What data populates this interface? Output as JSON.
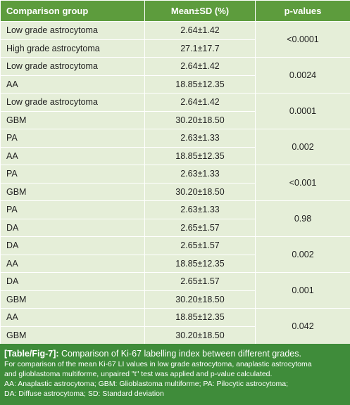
{
  "table": {
    "header": [
      "Comparison group",
      "Mean±SD (%)",
      "p-values"
    ],
    "groups": [
      {
        "rows": [
          [
            "Low grade astrocytoma",
            "2.64±1.42"
          ],
          [
            "High grade astrocytoma",
            "27.1±17.7"
          ]
        ],
        "p": "<0.0001"
      },
      {
        "rows": [
          [
            "Low grade astrocytoma",
            "2.64±1.42"
          ],
          [
            "AA",
            "18.85±12.35"
          ]
        ],
        "p": "0.0024"
      },
      {
        "rows": [
          [
            "Low grade astrocytoma",
            "2.64±1.42"
          ],
          [
            "GBM",
            "30.20±18.50"
          ]
        ],
        "p": "0.0001"
      },
      {
        "rows": [
          [
            "PA",
            "2.63±1.33"
          ],
          [
            "AA",
            "18.85±12.35"
          ]
        ],
        "p": "0.002"
      },
      {
        "rows": [
          [
            "PA",
            "2.63±1.33"
          ],
          [
            "GBM",
            "30.20±18.50"
          ]
        ],
        "p": "<0.001"
      },
      {
        "rows": [
          [
            "PA",
            "2.63±1.33"
          ],
          [
            "DA",
            "2.65±1.57"
          ]
        ],
        "p": "0.98"
      },
      {
        "rows": [
          [
            "DA",
            "2.65±1.57"
          ],
          [
            "AA",
            "18.85±12.35"
          ]
        ],
        "p": "0.002"
      },
      {
        "rows": [
          [
            "DA",
            "2.65±1.57"
          ],
          [
            "GBM",
            "30.20±18.50"
          ]
        ],
        "p": "0.001"
      },
      {
        "rows": [
          [
            "AA",
            "18.85±12.35"
          ],
          [
            "GBM",
            "30.20±18.50"
          ]
        ],
        "p": "0.042"
      }
    ]
  },
  "caption": {
    "label": "[Table/Fig-7]:",
    "title": "Comparison of Ki-67 labelling index between different grades.",
    "lines": [
      "For comparison of the mean Ki-67 LI values in low grade astrocytoma, anaplastic astrocytoma",
      "and glioblastoma multiforme, unpaired \"t\" test was applied and p-value calculated.",
      "AA: Anaplastic astrocytoma; GBM: Glioblastoma multiforme; PA: Pilocytic astrocytoma;",
      "DA: Diffuse astrocytoma; SD: Standard deviation"
    ]
  }
}
